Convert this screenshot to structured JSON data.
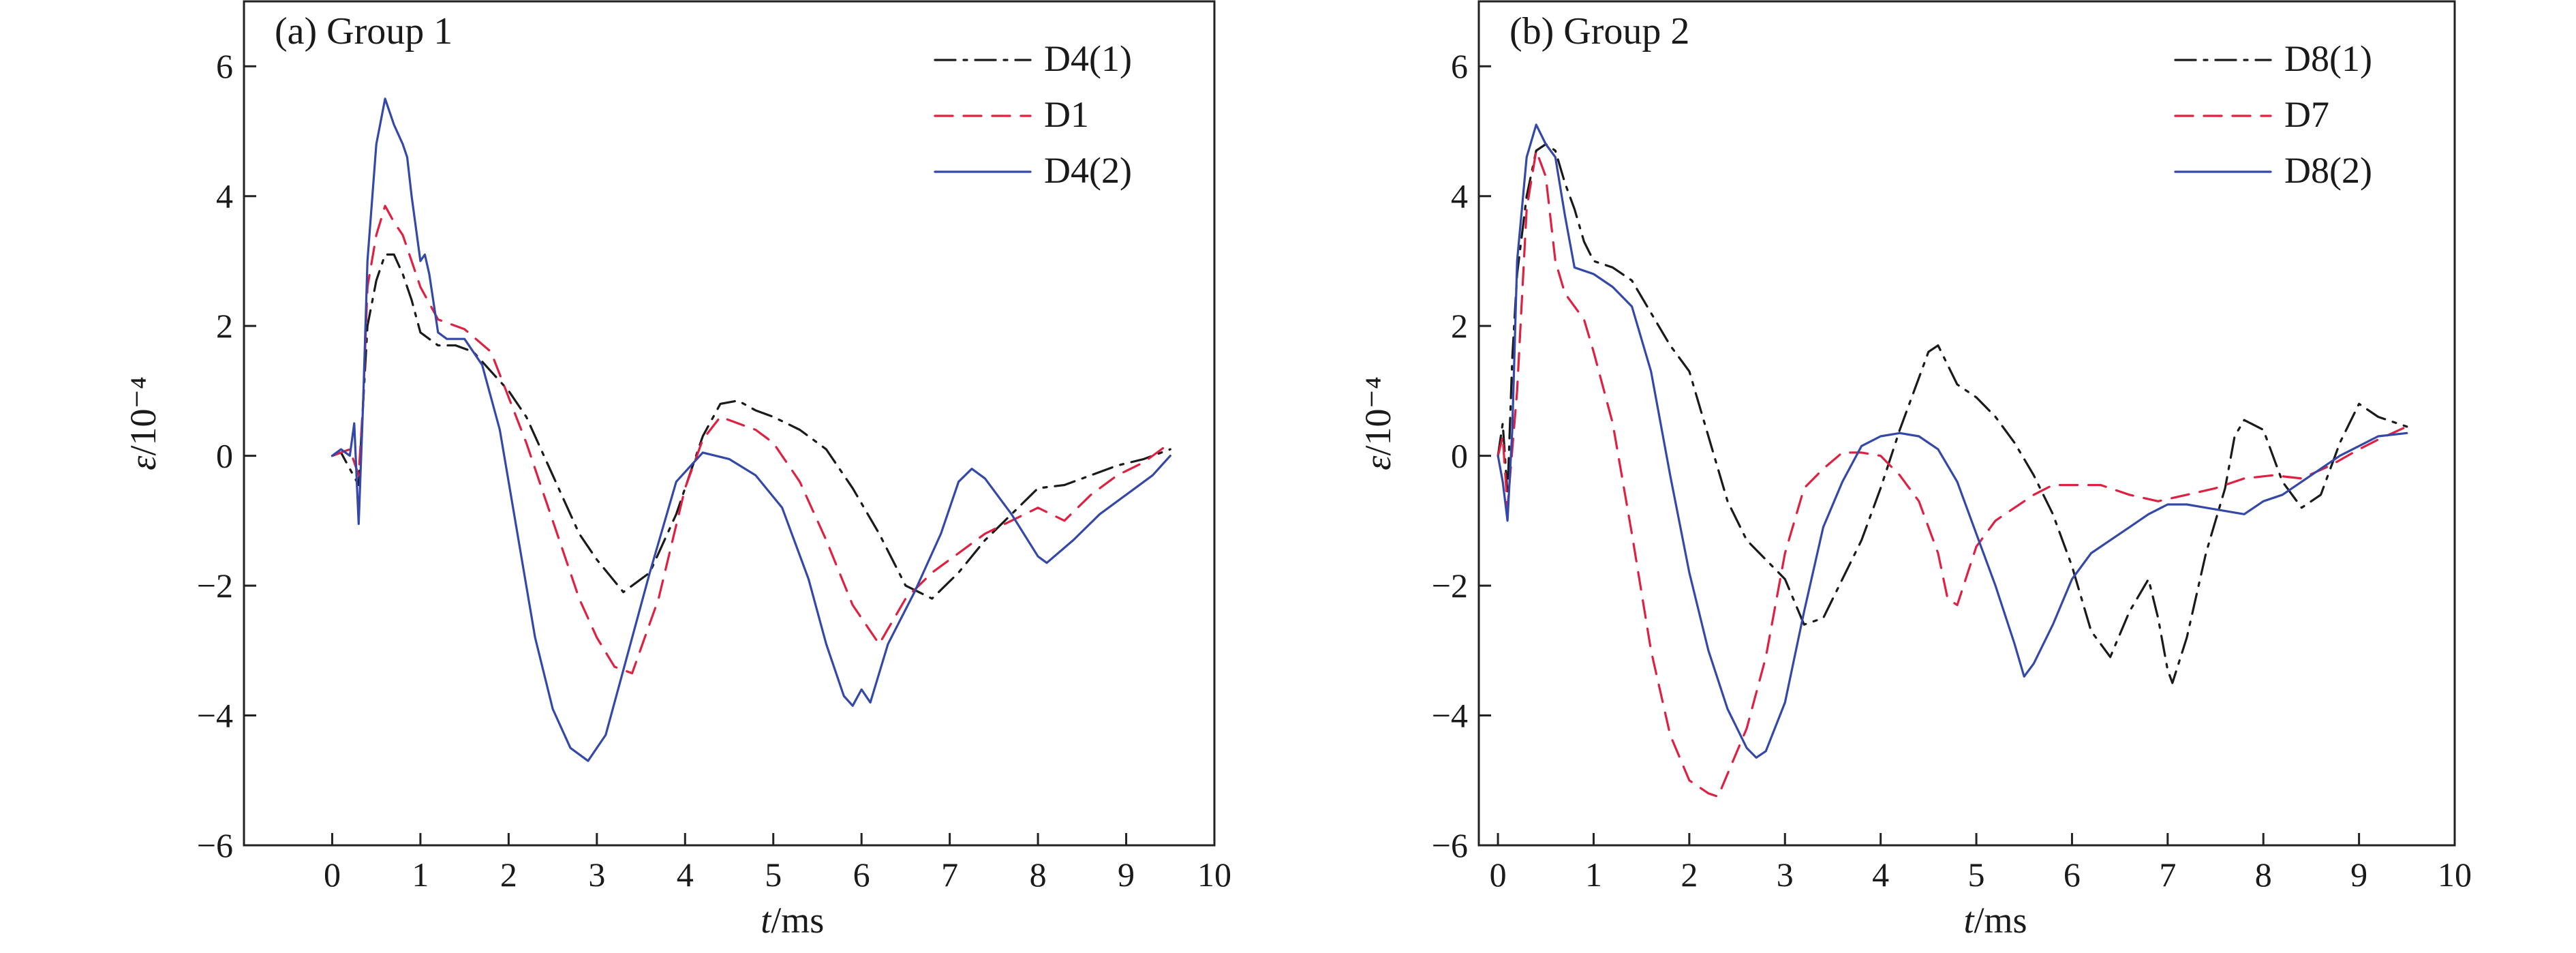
{
  "chart_data": [
    {
      "type": "line",
      "title": "(a) Group 1",
      "xlabel": "t/ms",
      "ylabel": "ε/10⁻⁴",
      "xlim": [
        -1,
        10
      ],
      "ylim": [
        -6,
        7
      ],
      "xticks": [
        0,
        1,
        2,
        3,
        4,
        5,
        6,
        7,
        8,
        9,
        10
      ],
      "yticks": [
        -6,
        -4,
        -2,
        0,
        2,
        4,
        6
      ],
      "xtick_labels": [
        "0",
        "1",
        "2",
        "3",
        "4",
        "5",
        "6",
        "7",
        "8",
        "9",
        "10"
      ],
      "ytick_labels": [
        "−6",
        "−4",
        "−2",
        "0",
        "2",
        "4",
        "6"
      ],
      "legend_position": "top-right",
      "series": [
        {
          "name": "D4(1)",
          "color": "#1a1a1a",
          "dash": "dashdot",
          "x": [
            0,
            0.1,
            0.2,
            0.3,
            0.35,
            0.4,
            0.5,
            0.6,
            0.7,
            0.8,
            0.9,
            1.0,
            1.2,
            1.4,
            1.6,
            1.8,
            2.0,
            2.2,
            2.5,
            2.8,
            3.0,
            3.3,
            3.6,
            3.9,
            4.2,
            4.4,
            4.6,
            4.8,
            5.0,
            5.3,
            5.6,
            5.9,
            6.2,
            6.5,
            6.8,
            7.1,
            7.4,
            7.7,
            8.0,
            8.3,
            8.6,
            8.9,
            9.2,
            9.5
          ],
          "y": [
            0,
            0.05,
            -0.2,
            -0.45,
            0.8,
            2.0,
            2.7,
            3.1,
            3.1,
            2.8,
            2.4,
            1.9,
            1.7,
            1.7,
            1.6,
            1.3,
            1.0,
            0.6,
            -0.3,
            -1.2,
            -1.6,
            -2.1,
            -1.8,
            -0.9,
            0.3,
            0.8,
            0.85,
            0.7,
            0.6,
            0.4,
            0.1,
            -0.5,
            -1.2,
            -2.0,
            -2.2,
            -1.8,
            -1.3,
            -0.9,
            -0.5,
            -0.45,
            -0.3,
            -0.15,
            -0.05,
            0.1
          ]
        },
        {
          "name": "D1",
          "color": "#e02040",
          "dash": "dashed",
          "x": [
            0,
            0.1,
            0.2,
            0.3,
            0.35,
            0.4,
            0.5,
            0.6,
            0.7,
            0.8,
            0.9,
            1.0,
            1.2,
            1.5,
            1.8,
            2.0,
            2.2,
            2.4,
            2.6,
            2.8,
            3.0,
            3.2,
            3.4,
            3.7,
            4.0,
            4.2,
            4.4,
            4.6,
            4.8,
            5.0,
            5.3,
            5.6,
            5.9,
            6.2,
            6.5,
            6.8,
            7.1,
            7.4,
            7.7,
            8.0,
            8.3,
            8.6,
            8.9,
            9.2,
            9.5
          ],
          "y": [
            0,
            0.05,
            0.1,
            -0.3,
            0.8,
            2.6,
            3.4,
            3.85,
            3.6,
            3.4,
            3.0,
            2.6,
            2.1,
            1.95,
            1.6,
            0.9,
            0.2,
            -0.6,
            -1.4,
            -2.2,
            -2.8,
            -3.25,
            -3.35,
            -2.2,
            -0.5,
            0.25,
            0.6,
            0.5,
            0.4,
            0.2,
            -0.4,
            -1.3,
            -2.3,
            -2.9,
            -2.2,
            -1.8,
            -1.5,
            -1.2,
            -1.0,
            -0.8,
            -1.0,
            -0.6,
            -0.3,
            -0.1,
            0.2
          ]
        },
        {
          "name": "D4(2)",
          "color": "#3348a8",
          "dash": "solid",
          "x": [
            0,
            0.1,
            0.2,
            0.25,
            0.3,
            0.35,
            0.4,
            0.5,
            0.6,
            0.65,
            0.7,
            0.8,
            0.85,
            0.9,
            1.0,
            1.05,
            1.1,
            1.2,
            1.3,
            1.5,
            1.7,
            1.9,
            2.1,
            2.3,
            2.5,
            2.7,
            2.9,
            3.1,
            3.3,
            3.6,
            3.9,
            4.2,
            4.5,
            4.8,
            5.1,
            5.4,
            5.6,
            5.8,
            5.9,
            6.0,
            6.1,
            6.3,
            6.6,
            6.9,
            7.1,
            7.25,
            7.4,
            7.7,
            8.0,
            8.1,
            8.4,
            8.7,
            9.0,
            9.3,
            9.5
          ],
          "y": [
            0,
            0.1,
            0.0,
            0.5,
            -1.05,
            0.8,
            3.0,
            4.8,
            5.5,
            5.3,
            5.1,
            4.8,
            4.6,
            4.0,
            3.0,
            3.1,
            2.8,
            1.9,
            1.8,
            1.8,
            1.4,
            0.4,
            -1.2,
            -2.8,
            -3.9,
            -4.5,
            -4.7,
            -4.3,
            -3.3,
            -1.8,
            -0.4,
            0.05,
            -0.05,
            -0.3,
            -0.8,
            -1.9,
            -2.9,
            -3.7,
            -3.85,
            -3.6,
            -3.8,
            -2.9,
            -2.1,
            -1.2,
            -0.4,
            -0.2,
            -0.35,
            -0.9,
            -1.55,
            -1.65,
            -1.3,
            -0.9,
            -0.6,
            -0.3,
            0.0
          ]
        }
      ]
    },
    {
      "type": "line",
      "title": "(b) Group 2",
      "xlabel": "t/ms",
      "ylabel": "ε/10⁻⁴",
      "xlim": [
        -0.2,
        10
      ],
      "ylim": [
        -6,
        7
      ],
      "xticks": [
        0,
        1,
        2,
        3,
        4,
        5,
        6,
        7,
        8,
        9,
        10
      ],
      "yticks": [
        -6,
        -4,
        -2,
        0,
        2,
        4,
        6
      ],
      "xtick_labels": [
        "0",
        "1",
        "2",
        "3",
        "4",
        "5",
        "6",
        "7",
        "8",
        "9",
        "10"
      ],
      "ytick_labels": [
        "−6",
        "−4",
        "−2",
        "0",
        "2",
        "4",
        "6"
      ],
      "legend_position": "top-right",
      "series": [
        {
          "name": "D8(1)",
          "color": "#1a1a1a",
          "dash": "dashdot",
          "x": [
            0,
            0.05,
            0.1,
            0.15,
            0.2,
            0.3,
            0.4,
            0.5,
            0.6,
            0.7,
            0.8,
            0.9,
            1.0,
            1.2,
            1.4,
            1.6,
            1.8,
            2.0,
            2.2,
            2.4,
            2.6,
            2.8,
            3.0,
            3.2,
            3.4,
            3.6,
            3.8,
            4.0,
            4.2,
            4.4,
            4.5,
            4.6,
            4.8,
            5.0,
            5.2,
            5.4,
            5.6,
            5.8,
            6.0,
            6.2,
            6.4,
            6.6,
            6.8,
            6.9,
            7.0,
            7.05,
            7.2,
            7.4,
            7.6,
            7.7,
            7.8,
            8.0,
            8.2,
            8.4,
            8.6,
            8.8,
            9.0,
            9.2,
            9.5
          ],
          "y": [
            0,
            0.5,
            -0.6,
            1.5,
            2.8,
            4.0,
            4.7,
            4.8,
            4.7,
            4.2,
            3.8,
            3.3,
            3.0,
            2.9,
            2.7,
            2.2,
            1.7,
            1.3,
            0.3,
            -0.7,
            -1.3,
            -1.6,
            -1.9,
            -2.6,
            -2.5,
            -1.9,
            -1.3,
            -0.5,
            0.4,
            1.2,
            1.6,
            1.7,
            1.1,
            0.9,
            0.6,
            0.2,
            -0.3,
            -0.9,
            -1.7,
            -2.7,
            -3.1,
            -2.4,
            -1.9,
            -2.5,
            -3.3,
            -3.5,
            -2.8,
            -1.5,
            -0.5,
            0.3,
            0.55,
            0.4,
            -0.4,
            -0.8,
            -0.6,
            0.2,
            0.8,
            0.6,
            0.45
          ]
        },
        {
          "name": "D7",
          "color": "#e02040",
          "dash": "dashed",
          "x": [
            0,
            0.05,
            0.1,
            0.2,
            0.3,
            0.4,
            0.5,
            0.6,
            0.7,
            0.8,
            0.9,
            1.0,
            1.2,
            1.4,
            1.6,
            1.8,
            2.0,
            2.2,
            2.3,
            2.4,
            2.6,
            2.8,
            3.0,
            3.2,
            3.4,
            3.6,
            3.8,
            4.0,
            4.2,
            4.4,
            4.6,
            4.7,
            4.8,
            5.0,
            5.2,
            5.4,
            5.6,
            5.8,
            6.0,
            6.3,
            6.6,
            6.9,
            7.2,
            7.5,
            7.8,
            8.1,
            8.4,
            8.7,
            9.0,
            9.2,
            9.5
          ],
          "y": [
            0,
            0.3,
            -0.8,
            1.0,
            3.8,
            4.7,
            4.3,
            3.0,
            2.5,
            2.3,
            2.1,
            1.6,
            0.5,
            -1.2,
            -3.0,
            -4.3,
            -5.0,
            -5.2,
            -5.25,
            -4.9,
            -4.2,
            -3.1,
            -1.5,
            -0.5,
            -0.2,
            0.05,
            0.05,
            0.0,
            -0.3,
            -0.7,
            -1.5,
            -2.2,
            -2.3,
            -1.4,
            -1.0,
            -0.8,
            -0.6,
            -0.45,
            -0.45,
            -0.45,
            -0.6,
            -0.7,
            -0.6,
            -0.5,
            -0.35,
            -0.3,
            -0.35,
            -0.15,
            0.1,
            0.25,
            0.45
          ]
        },
        {
          "name": "D8(2)",
          "color": "#3348a8",
          "dash": "solid",
          "x": [
            0,
            0.05,
            0.1,
            0.15,
            0.2,
            0.3,
            0.4,
            0.5,
            0.6,
            0.7,
            0.8,
            0.9,
            1.0,
            1.2,
            1.4,
            1.6,
            1.8,
            2.0,
            2.2,
            2.4,
            2.6,
            2.7,
            2.8,
            3.0,
            3.2,
            3.4,
            3.6,
            3.8,
            4.0,
            4.2,
            4.4,
            4.6,
            4.8,
            5.0,
            5.2,
            5.4,
            5.5,
            5.6,
            5.8,
            6.0,
            6.2,
            6.4,
            6.6,
            6.8,
            7.0,
            7.2,
            7.4,
            7.6,
            7.8,
            8.0,
            8.2,
            8.5,
            8.8,
            9.0,
            9.2,
            9.5
          ],
          "y": [
            0,
            -0.4,
            -1.0,
            0.4,
            3.0,
            4.6,
            5.1,
            4.8,
            4.6,
            3.7,
            2.9,
            2.85,
            2.8,
            2.6,
            2.3,
            1.3,
            -0.3,
            -1.8,
            -3.0,
            -3.9,
            -4.5,
            -4.65,
            -4.55,
            -3.8,
            -2.4,
            -1.1,
            -0.4,
            0.15,
            0.3,
            0.35,
            0.3,
            0.1,
            -0.4,
            -1.2,
            -2.0,
            -2.9,
            -3.4,
            -3.2,
            -2.6,
            -1.9,
            -1.5,
            -1.3,
            -1.1,
            -0.9,
            -0.75,
            -0.75,
            -0.8,
            -0.85,
            -0.9,
            -0.7,
            -0.6,
            -0.3,
            0.0,
            0.15,
            0.3,
            0.35
          ]
        }
      ]
    }
  ]
}
